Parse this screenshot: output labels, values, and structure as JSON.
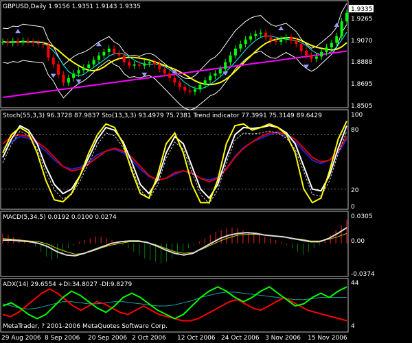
{
  "chart_data": {
    "type": "line",
    "x_dates": [
      "29 Aug 2006",
      "8 Sep 2006",
      "20 Sep 2006",
      "2 Oct 2006",
      "12 Oct 2006",
      "24 Oct 2006",
      "3 Nov 2006",
      "15 Nov 2006"
    ],
    "panels": [
      {
        "id": "price",
        "header": "GBPUSD,Daily  1.9156 1.9351 1.9143 1.9335",
        "yticks": [
          "1.9265",
          "1.9070",
          "1.8888",
          "1.8695",
          "1.8505"
        ],
        "ylim": [
          1.8505,
          1.94
        ],
        "last_price": "1.9335",
        "colors": {
          "up": "#00ff00",
          "down": "#ff0000",
          "ma": "#ffff00",
          "band": "#ffffff",
          "ma_slow": "#ff00ff",
          "ma_mid": "#00ffff"
        },
        "candles_close": [
          1.908,
          1.907,
          1.9085,
          1.9075,
          1.909,
          1.908,
          1.907,
          1.906,
          1.905,
          1.894,
          1.888,
          1.879,
          1.872,
          1.876,
          1.88,
          1.883,
          1.885,
          1.888,
          1.892,
          1.896,
          1.899,
          1.902,
          1.898,
          1.896,
          1.89,
          1.887,
          1.888,
          1.887,
          1.889,
          1.89,
          1.888,
          1.884,
          1.88,
          1.876,
          1.872,
          1.868,
          1.865,
          1.864,
          1.866,
          1.87,
          1.874,
          1.878,
          1.88,
          1.884,
          1.89,
          1.896,
          1.902,
          1.906,
          1.91,
          1.913,
          1.915,
          1.916,
          1.912,
          1.909,
          1.908,
          1.91,
          1.912,
          1.909,
          1.906,
          1.9,
          1.896,
          1.893,
          1.895,
          1.899,
          1.903,
          1.907,
          1.913,
          1.926,
          1.9335
        ]
      },
      {
        "id": "stoch",
        "header": "Stoch(55,3,3) 96.3728 87.9837  Sto(13,3,3) 93.4979 75.7381  Trend indicator 77.3991 75.3149 89.6429",
        "yticks": [
          "100",
          "80",
          "20",
          "0"
        ],
        "ylim": [
          0,
          100
        ],
        "series_yellow": [
          60,
          80,
          88,
          82,
          60,
          30,
          8,
          6,
          15,
          35,
          60,
          80,
          92,
          88,
          70,
          40,
          15,
          10,
          35,
          70,
          82,
          60,
          25,
          5,
          5,
          30,
          70,
          90,
          92,
          85,
          88,
          92,
          88,
          80,
          60,
          20,
          5,
          10,
          40,
          75,
          95
        ],
        "series_white": [
          55,
          75,
          90,
          85,
          70,
          45,
          25,
          15,
          20,
          35,
          55,
          75,
          88,
          85,
          72,
          50,
          25,
          15,
          30,
          60,
          78,
          70,
          45,
          20,
          10,
          25,
          55,
          80,
          88,
          87,
          88,
          90,
          88,
          82,
          70,
          45,
          20,
          18,
          35,
          65,
          90
        ],
        "series_red": [
          70,
          78,
          80,
          78,
          72,
          65,
          55,
          45,
          40,
          42,
          48,
          55,
          62,
          65,
          62,
          55,
          45,
          35,
          30,
          32,
          38,
          40,
          38,
          32,
          28,
          32,
          42,
          55,
          65,
          72,
          78,
          82,
          83,
          80,
          75,
          65,
          55,
          50,
          52,
          62,
          78
        ],
        "series_blue": [
          65,
          72,
          78,
          76,
          70,
          62,
          52,
          45,
          42,
          44,
          50,
          58,
          62,
          64,
          60,
          52,
          42,
          34,
          30,
          32,
          36,
          40,
          37,
          32,
          30,
          33,
          43,
          56,
          66,
          72,
          76,
          80,
          82,
          78,
          72,
          62,
          52,
          48,
          52,
          60,
          75
        ]
      },
      {
        "id": "macd",
        "header": "MACD(5,34,5) 0.0192 0.0100 0.0274",
        "yticks": [
          "0.0305",
          "0.00",
          "-0.0374"
        ],
        "ylim": [
          -0.0374,
          0.0305
        ],
        "hist": [
          0.012,
          0.01,
          0.008,
          0.006,
          0.004,
          0.002,
          -0.004,
          -0.01,
          -0.016,
          -0.02,
          -0.018,
          -0.012,
          -0.006,
          -0.002,
          0.002,
          0.004,
          0.006,
          0.008,
          0.008,
          0.006,
          0.004,
          0.002,
          -0.002,
          -0.006,
          -0.01,
          -0.014,
          -0.018,
          -0.02,
          -0.022,
          -0.024,
          -0.022,
          -0.018,
          -0.014,
          -0.01,
          -0.006,
          -0.002,
          0.002,
          0.006,
          0.01,
          0.014,
          0.016,
          0.018,
          0.019,
          0.018,
          0.016,
          0.014,
          0.012,
          0.01,
          0.008,
          0.006,
          0.004,
          0.002,
          -0.002,
          -0.006,
          -0.01,
          -0.014,
          -0.01,
          -0.006,
          -0.002,
          0.004,
          0.01,
          0.016,
          0.022,
          0.028
        ],
        "signal_white": [
          0.004,
          0.004,
          0.003,
          0.002,
          0.0,
          -0.004,
          -0.01,
          -0.014,
          -0.015,
          -0.012,
          -0.008,
          -0.004,
          0.0,
          0.002,
          0.003,
          0.003,
          0.001,
          -0.003,
          -0.008,
          -0.012,
          -0.014,
          -0.012,
          -0.006,
          0.0,
          0.006,
          0.01,
          0.012,
          0.013,
          0.012,
          0.01,
          0.009,
          0.008,
          0.006,
          0.004,
          0.002,
          0.002,
          0.006,
          0.012,
          0.019
        ],
        "signal_yellow": [
          0.006,
          0.005,
          0.004,
          0.003,
          0.002,
          -0.001,
          -0.006,
          -0.01,
          -0.013,
          -0.012,
          -0.009,
          -0.005,
          -0.002,
          0.0,
          0.002,
          0.002,
          0.001,
          -0.002,
          -0.006,
          -0.01,
          -0.012,
          -0.011,
          -0.007,
          -0.002,
          0.003,
          0.007,
          0.01,
          0.011,
          0.011,
          0.01,
          0.009,
          0.008,
          0.006,
          0.005,
          0.003,
          0.003,
          0.005,
          0.008,
          0.012
        ]
      },
      {
        "id": "adx",
        "header": "ADX(14) 29.6554 +DI:34.8027 -DI:9.8279",
        "yticks": [
          "44",
          "4"
        ],
        "ylim": [
          4,
          44
        ],
        "plus_di": [
          22,
          25,
          20,
          14,
          10,
          14,
          22,
          30,
          36,
          32,
          26,
          20,
          16,
          22,
          30,
          34,
          30,
          24,
          18,
          14,
          10,
          14,
          22,
          30,
          36,
          40,
          36,
          30,
          26,
          30,
          36,
          40,
          34,
          28,
          22,
          24,
          30,
          34,
          30,
          36,
          40
        ],
        "minus_di": [
          14,
          12,
          16,
          22,
          28,
          34,
          38,
          34,
          28,
          22,
          18,
          22,
          26,
          24,
          20,
          16,
          14,
          18,
          22,
          18,
          14,
          12,
          10,
          8,
          8,
          10,
          14,
          18,
          22,
          26,
          28,
          24,
          20,
          18,
          22,
          26,
          30,
          26,
          22,
          18,
          16,
          14,
          12,
          10,
          8
        ],
        "adx_line": [
          24,
          22,
          20,
          19,
          20,
          22,
          24,
          26,
          26,
          25,
          24,
          24,
          25,
          26,
          26,
          25,
          24,
          23,
          22,
          22,
          23,
          25,
          27,
          30,
          32,
          34,
          35,
          35,
          34,
          33,
          32,
          31,
          30,
          29,
          28,
          28,
          29,
          30,
          30,
          30,
          30
        ],
        "footer": "MetaTrader, ? 2001-2006 MetaQuotes Software Corp."
      }
    ]
  }
}
